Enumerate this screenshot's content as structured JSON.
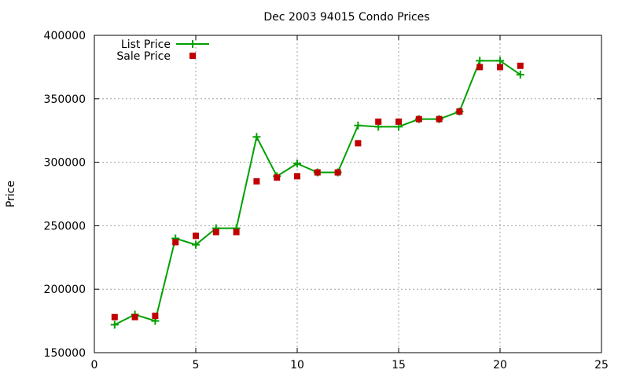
{
  "chart_data": {
    "type": "line",
    "title": "Dec 2003 94015 Condo Prices",
    "xlabel": "",
    "ylabel": "Price",
    "xlim": [
      0,
      25
    ],
    "ylim": [
      150000,
      400000
    ],
    "x_ticks": [
      0,
      5,
      10,
      15,
      20,
      25
    ],
    "y_ticks": [
      150000,
      200000,
      250000,
      300000,
      350000,
      400000
    ],
    "grid": true,
    "legend_position": "top-left",
    "series": [
      {
        "name": "List Price",
        "style": "line+marker",
        "marker": "plus",
        "color": "#00a000",
        "x": [
          1,
          2,
          3,
          4,
          5,
          6,
          7,
          8,
          9,
          10,
          11,
          12,
          13,
          14,
          15,
          16,
          17,
          18,
          19,
          20,
          21
        ],
        "values": [
          172000,
          180000,
          175000,
          240000,
          235000,
          248000,
          248000,
          320000,
          289000,
          299000,
          292000,
          292000,
          329000,
          328000,
          328000,
          334000,
          334000,
          340000,
          380000,
          380000,
          369000
        ]
      },
      {
        "name": "Sale Price",
        "style": "marker",
        "marker": "square",
        "color": "#c00000",
        "x": [
          1,
          2,
          3,
          4,
          5,
          6,
          7,
          8,
          9,
          10,
          11,
          12,
          13,
          14,
          15,
          16,
          17,
          18,
          19,
          20,
          21
        ],
        "values": [
          178000,
          178000,
          179000,
          237000,
          242000,
          245000,
          245000,
          285000,
          288000,
          289000,
          292000,
          292000,
          315000,
          332000,
          332000,
          334000,
          334000,
          340000,
          375000,
          375000,
          376000
        ]
      }
    ]
  }
}
